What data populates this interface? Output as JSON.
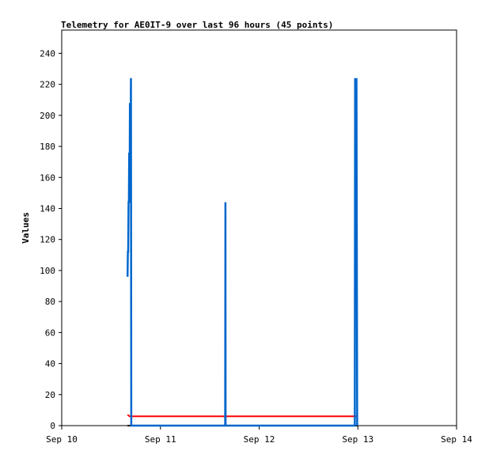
{
  "chart_data": {
    "type": "line",
    "title": "Telemetry for AE0IT-9 over last 96 hours (45 points)",
    "xlabel": "",
    "ylabel": "Values",
    "xlim": [
      "2024-09-10T00:00",
      "2024-09-14T00:00"
    ],
    "ylim": [
      0,
      255
    ],
    "x_ticks": [
      {
        "t": "2024-09-10T00:00",
        "label": "Sep 10"
      },
      {
        "t": "2024-09-11T00:00",
        "label": "Sep 11"
      },
      {
        "t": "2024-09-12T00:00",
        "label": "Sep 12"
      },
      {
        "t": "2024-09-13T00:00",
        "label": "Sep 13"
      },
      {
        "t": "2024-09-14T00:00",
        "label": "Sep 14"
      }
    ],
    "y_ticks": [
      0,
      20,
      40,
      60,
      80,
      100,
      120,
      140,
      160,
      180,
      200,
      220,
      240
    ],
    "grid": false,
    "series": [
      {
        "color": "#0066cc",
        "points": [
          [
            "2024-09-10T16:00",
            96
          ],
          [
            "2024-09-10T16:05",
            112
          ],
          [
            "2024-09-10T16:10",
            112
          ],
          [
            "2024-09-10T16:15",
            144
          ],
          [
            "2024-09-10T16:20",
            144
          ],
          [
            "2024-09-10T16:25",
            176
          ],
          [
            "2024-09-10T16:30",
            144
          ],
          [
            "2024-09-10T16:35",
            208
          ],
          [
            "2024-09-10T16:40",
            144
          ],
          [
            "2024-09-10T16:50",
            224
          ],
          [
            "2024-09-10T16:55",
            0
          ],
          [
            "2024-09-11T15:45",
            0
          ],
          [
            "2024-09-11T15:48",
            144
          ],
          [
            "2024-09-11T15:51",
            0
          ],
          [
            "2024-09-12T23:15",
            0
          ],
          [
            "2024-09-12T23:20",
            224
          ],
          [
            "2024-09-12T23:30",
            176
          ],
          [
            "2024-09-12T23:40",
            224
          ],
          [
            "2024-09-12T23:50",
            0
          ]
        ]
      },
      {
        "color": "#ff0000",
        "points": [
          [
            "2024-09-10T16:00",
            7
          ],
          [
            "2024-09-10T16:30",
            6
          ],
          [
            "2024-09-12T23:59",
            6
          ]
        ]
      },
      {
        "color": "#000000",
        "points": [
          [
            "2024-09-10T16:00",
            0
          ],
          [
            "2024-09-12T23:59",
            0
          ]
        ]
      }
    ]
  }
}
